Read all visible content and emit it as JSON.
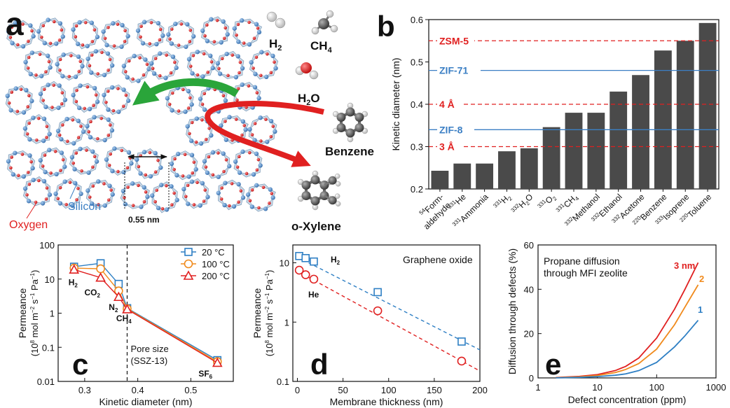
{
  "panels": {
    "a": {
      "letter": "a",
      "labels": {
        "h2": "H",
        "h2_sub": "2",
        "ch4": "CH",
        "ch4_sub": "4",
        "h2o_a": "H",
        "h2o_sub": "2",
        "h2o_b": "O",
        "benzene": "Benzene",
        "oxylene": "o-Xylene",
        "silicon": "Silicon",
        "oxygen": "Oxygen",
        "pore": "0.55 nm"
      },
      "colors": {
        "silicon": "#3b7fc4",
        "oxygen": "#e02020",
        "arrow_green": "#2aa53a",
        "arrow_red": "#e02020"
      }
    },
    "b": {
      "letter": "b"
    },
    "c": {
      "letter": "c"
    },
    "d": {
      "letter": "d"
    },
    "e": {
      "letter": "e"
    }
  },
  "chart_data": [
    {
      "panel": "b",
      "type": "bar",
      "ylabel": "Kinetic diameter (nm)",
      "ylim": [
        0.2,
        0.6
      ],
      "yticks": [
        "0.2",
        "0.3",
        "0.4",
        "0.5",
        "0.6"
      ],
      "categories": [
        {
          "sup": "54",
          "name": "Form-",
          "name2": "aldehyde"
        },
        {
          "sup": "331",
          "name": "He"
        },
        {
          "sup": "331",
          "name": "Ammonia"
        },
        {
          "sup": "331",
          "name": "H",
          "sub": "2"
        },
        {
          "sup": "332",
          "name": "H",
          "sub": "2",
          "name_after": "O"
        },
        {
          "sup": "331",
          "name": "O",
          "sub": "2"
        },
        {
          "sup": "331",
          "name": "CH",
          "sub": "4"
        },
        {
          "sup": "332",
          "name": "Methanol"
        },
        {
          "sup": "332",
          "name": "Ethanol"
        },
        {
          "sup": "332",
          "name": "Acetone"
        },
        {
          "sup": "220",
          "name": "Benzene"
        },
        {
          "sup": "333",
          "name": "Isoprene"
        },
        {
          "sup": "220",
          "name": "Toluene"
        }
      ],
      "values": [
        0.243,
        0.26,
        0.26,
        0.289,
        0.296,
        0.346,
        0.38,
        0.38,
        0.43,
        0.469,
        0.527,
        0.55,
        0.592
      ],
      "bar_color": "#4a4a4a",
      "reference_lines": [
        {
          "label": "ZSM-5",
          "value": 0.55,
          "style": "dashed",
          "color": "#e02020"
        },
        {
          "label": "ZIF-71",
          "value": 0.48,
          "style": "solid",
          "color": "#3b7fc4"
        },
        {
          "label": "4 Å",
          "value": 0.4,
          "style": "dashed",
          "color": "#e02020"
        },
        {
          "label": "ZIF-8",
          "value": 0.34,
          "style": "solid",
          "color": "#3b7fc4"
        },
        {
          "label": "3 Å",
          "value": 0.3,
          "style": "dashed",
          "color": "#e02020"
        }
      ]
    },
    {
      "panel": "c",
      "type": "line",
      "xlabel": "Kinetic diameter (nm)",
      "ylabel_line1": "Permeance",
      "ylabel_line2_a": "(10",
      "ylabel_line2_sup1": "8",
      "ylabel_line2_b": " mol m",
      "ylabel_line2_sup2": "−2",
      "ylabel_line2_c": " s",
      "ylabel_line2_sup3": "−1",
      "ylabel_line2_d": " Pa",
      "ylabel_line2_sup4": "−1",
      "ylabel_line2_e": ")",
      "xlim": [
        0.25,
        0.58
      ],
      "ylim": [
        0.01,
        100
      ],
      "yscale": "log",
      "xticks": [
        "0.3",
        "0.4",
        "0.5"
      ],
      "yticks": [
        "0.01",
        "0.1",
        "1",
        "10",
        "100"
      ],
      "x": [
        0.28,
        0.33,
        0.364,
        0.38,
        0.55
      ],
      "series": [
        {
          "name": "20 °C",
          "values": [
            23,
            29,
            7.2,
            1.4,
            0.042
          ],
          "color": "#2e7fc4",
          "marker": "square"
        },
        {
          "name": "100 °C",
          "values": [
            21,
            20,
            4.5,
            1.35,
            0.038
          ],
          "color": "#f08a1c",
          "marker": "circle"
        },
        {
          "name": "200 °C",
          "values": [
            19,
            11,
            3.0,
            1.3,
            0.035
          ],
          "color": "#e02020",
          "marker": "triangle"
        }
      ],
      "point_labels": [
        {
          "text": "H",
          "sub": "2",
          "x": 0.28,
          "y": 8
        },
        {
          "text": "CO",
          "sub": "2",
          "x": 0.31,
          "y": 4
        },
        {
          "text": "N",
          "sub": "2",
          "x": 0.356,
          "y": 1.5
        },
        {
          "text": "CH",
          "sub": "4",
          "x": 0.37,
          "y": 0.7
        },
        {
          "text": "SF",
          "sub": "6",
          "x": 0.525,
          "y": 0.017
        }
      ],
      "vline": {
        "x": 0.38,
        "label1": "Pore size",
        "label2": "(SSZ-13)"
      },
      "legend": "top-right"
    },
    {
      "panel": "d",
      "type": "scatter",
      "title": "Graphene oxide",
      "xlabel": "Membrane thickness (nm)",
      "ylabel_line1": "Permeance",
      "ylabel_line2_a": "(10",
      "ylabel_line2_sup1": "8",
      "ylabel_line2_b": " mol m",
      "ylabel_line2_sup2": "−2",
      "ylabel_line2_c": " s",
      "ylabel_line2_sup3": "−1",
      "ylabel_line2_d": " Pa",
      "ylabel_line2_sup4": "−1",
      "ylabel_line2_e": ")",
      "xlim": [
        -5,
        200
      ],
      "ylim": [
        0.1,
        20
      ],
      "yscale": "log",
      "xticks": [
        "0",
        "50",
        "100",
        "150",
        "200"
      ],
      "yticks": [
        "0.1",
        "1",
        "10"
      ],
      "series": [
        {
          "name": "H",
          "sub": "2",
          "x": [
            2,
            9,
            18,
            88,
            180
          ],
          "values": [
            13,
            12,
            10.5,
            3.2,
            0.47
          ],
          "fit": [
            [
              0,
              12.5
            ],
            [
              200,
              0.34
            ]
          ],
          "color": "#2e7fc4",
          "marker": "square"
        },
        {
          "name": "He",
          "x": [
            2,
            9,
            18,
            88,
            180
          ],
          "values": [
            7.5,
            6.3,
            5.3,
            1.55,
            0.22
          ],
          "fit": [
            [
              0,
              7.2
            ],
            [
              200,
              0.15
            ]
          ],
          "color": "#e02020",
          "marker": "circle"
        }
      ]
    },
    {
      "panel": "e",
      "type": "line",
      "title_line1": "Propane diffusion",
      "title_line2": "through MFI zeolite",
      "xlabel": "Defect concentration (ppm)",
      "ylabel": "Diffusion through defects (%)",
      "xlim": [
        1,
        1000
      ],
      "xscale": "log",
      "ylim": [
        0,
        60
      ],
      "xticks": [
        "1",
        "10",
        "100",
        "1000"
      ],
      "yticks": [
        "0",
        "20",
        "40",
        "60"
      ],
      "x": [
        2,
        5,
        10,
        20,
        30,
        50,
        100,
        200,
        300,
        500
      ],
      "series": [
        {
          "name": "3 nm",
          "values": [
            0.2,
            0.7,
            1.5,
            3.3,
            5.2,
            9.0,
            18,
            31,
            40,
            52
          ],
          "color": "#e02020"
        },
        {
          "name": "2",
          "values": [
            0.1,
            0.5,
            1.1,
            2.4,
            3.8,
            6.5,
            13,
            24,
            32,
            42
          ],
          "color": "#f08a1c"
        },
        {
          "name": "1",
          "values": [
            0.05,
            0.25,
            0.6,
            1.2,
            1.8,
            3.3,
            7,
            14,
            19,
            26
          ],
          "color": "#2e7fc4"
        }
      ]
    }
  ]
}
